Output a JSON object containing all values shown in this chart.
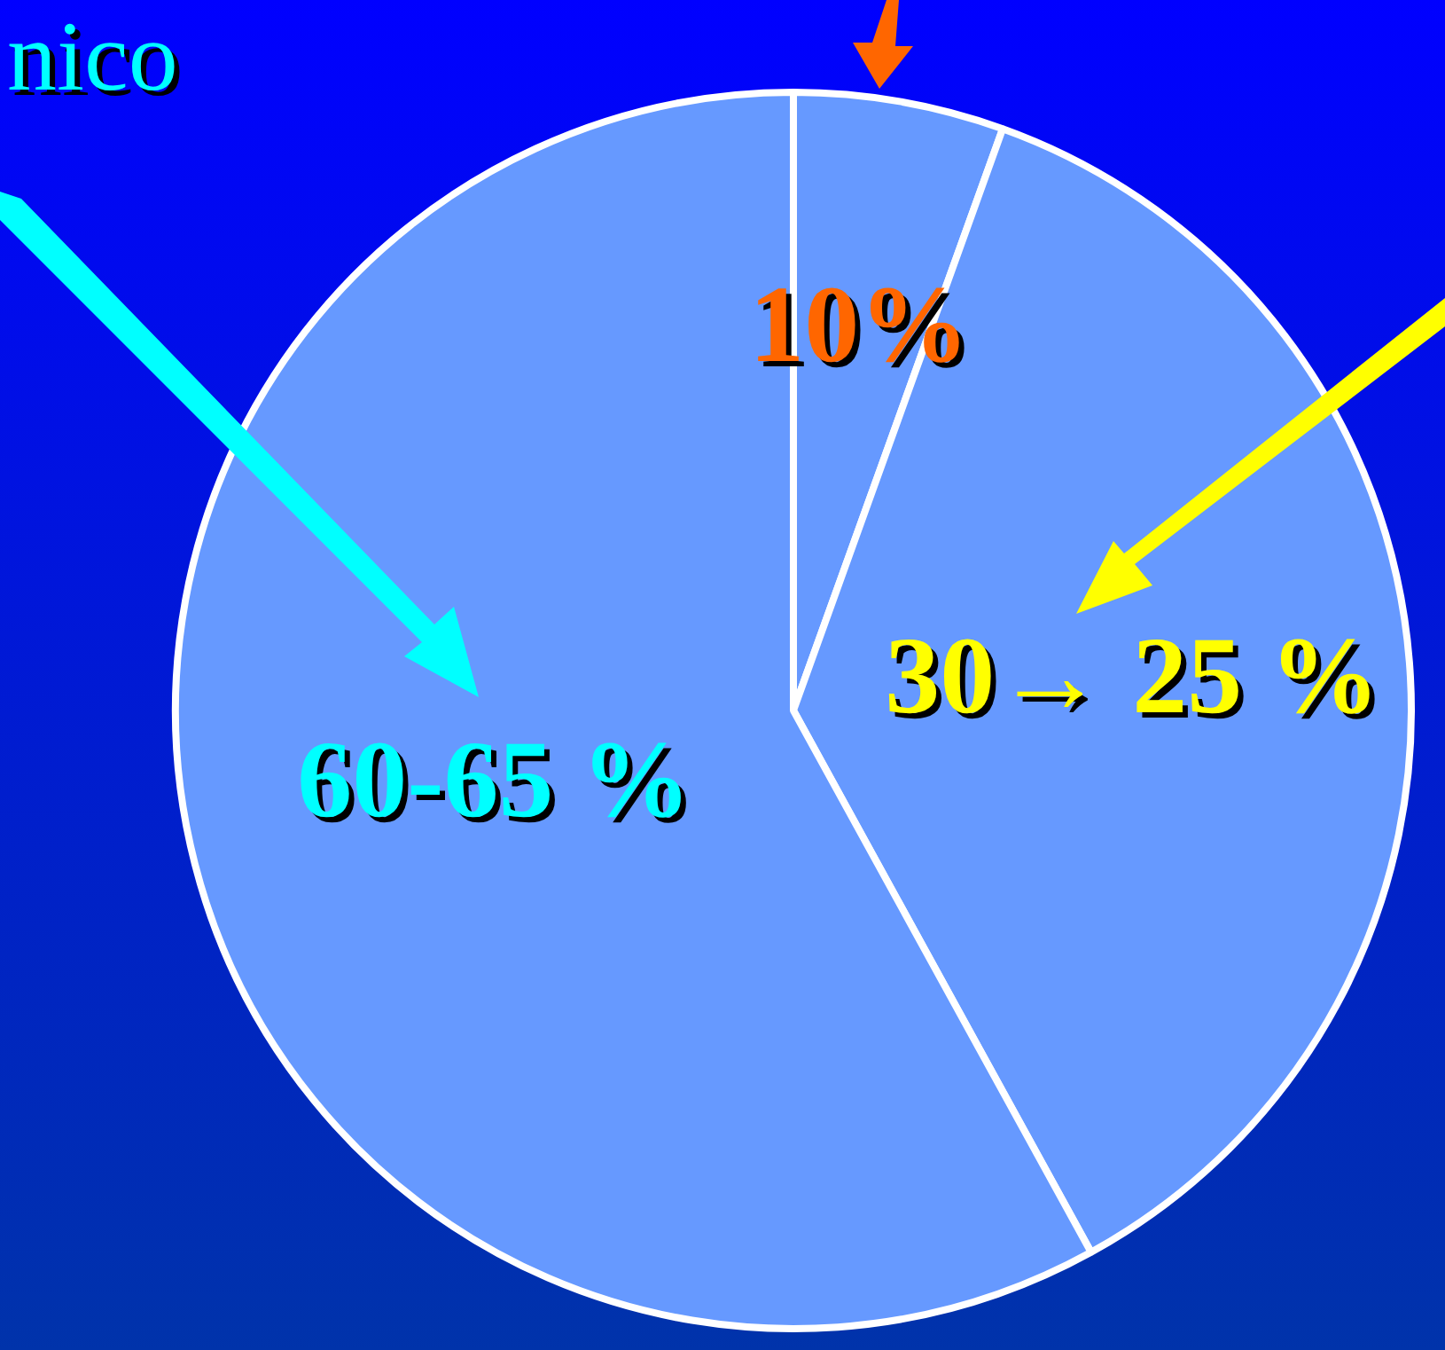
{
  "chart_data": {
    "type": "pie",
    "categories": [
      null,
      null,
      null
    ],
    "values": [
      5.5,
      36.5,
      58
    ],
    "colors": [
      "#6699ff",
      "#6699ff",
      "#6699ff"
    ],
    "annotations": [
      "nico",
      "10%",
      "30→ 25 %",
      "60-65 %"
    ],
    "legend": false
  }
}
